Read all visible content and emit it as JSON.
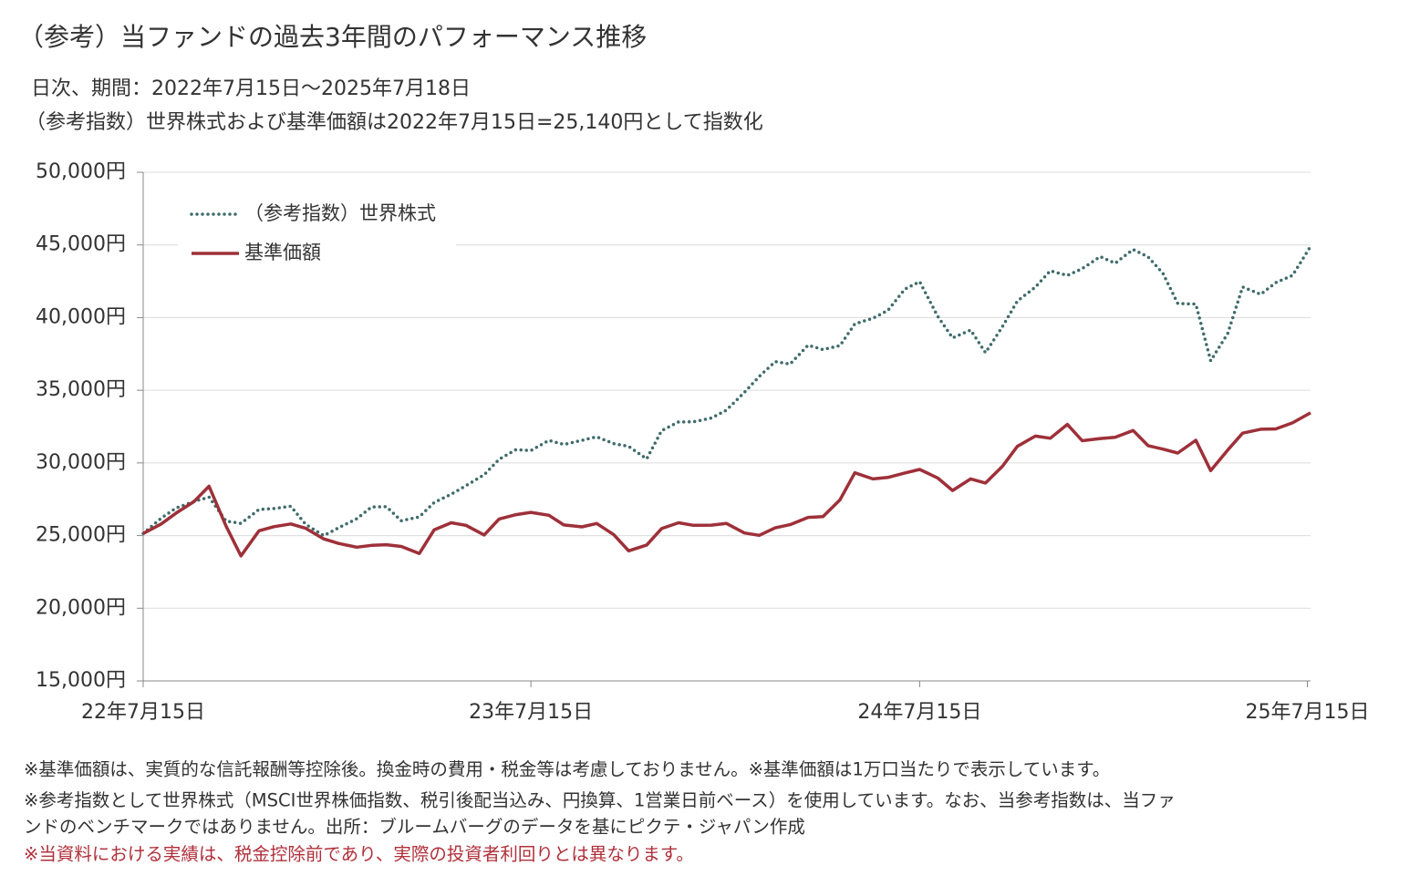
{
  "chart_data": {
    "type": "line",
    "title": "（参考）当ファンドの過去3年間のパフォーマンス推移",
    "subtitles": [
      "日次、期間：2022年7月15日～2025年7月18日",
      "（参考指数）世界株式および基準価額は2022年7月15日=25,140円として指数化"
    ],
    "x": [
      "2022-07-15",
      "2022-08-01",
      "2022-08-15",
      "2022-09-01",
      "2022-09-15",
      "2022-10-01",
      "2022-10-15",
      "2022-11-01",
      "2022-11-15",
      "2022-12-01",
      "2022-12-15",
      "2023-01-01",
      "2023-01-15",
      "2023-02-01",
      "2023-02-15",
      "2023-03-01",
      "2023-03-15",
      "2023-04-01",
      "2023-04-15",
      "2023-05-01",
      "2023-05-15",
      "2023-06-01",
      "2023-06-15",
      "2023-07-01",
      "2023-07-15",
      "2023-08-01",
      "2023-08-15",
      "2023-09-01",
      "2023-09-15",
      "2023-10-01",
      "2023-10-15",
      "2023-11-01",
      "2023-11-15",
      "2023-12-01",
      "2023-12-15",
      "2024-01-01",
      "2024-01-15",
      "2024-02-01",
      "2024-02-15",
      "2024-03-01",
      "2024-03-15",
      "2024-04-01",
      "2024-04-15",
      "2024-05-01",
      "2024-05-15",
      "2024-06-01",
      "2024-06-15",
      "2024-07-01",
      "2024-07-15",
      "2024-08-01",
      "2024-08-15",
      "2024-09-01",
      "2024-09-15",
      "2024-10-01",
      "2024-10-15",
      "2024-11-01",
      "2024-11-15",
      "2024-12-01",
      "2024-12-15",
      "2025-01-01",
      "2025-01-15",
      "2025-02-01",
      "2025-02-15",
      "2025-03-01",
      "2025-03-15",
      "2025-04-01",
      "2025-04-15",
      "2025-05-01",
      "2025-05-15",
      "2025-06-01",
      "2025-06-15",
      "2025-07-01",
      "2025-07-18"
    ],
    "series": [
      {
        "name": "（参考指数）世界株式",
        "color": "#3f6b6b",
        "dash": "dotted",
        "values": [
          25140,
          26200,
          26900,
          27350,
          27650,
          26000,
          25840,
          26800,
          26860,
          27020,
          25770,
          25000,
          25540,
          26160,
          26970,
          26990,
          26020,
          26290,
          27280,
          27850,
          28440,
          29190,
          30250,
          30920,
          30850,
          31550,
          31270,
          31550,
          31800,
          31330,
          31140,
          30280,
          32220,
          32820,
          32830,
          33090,
          33630,
          34850,
          35950,
          36970,
          36800,
          38100,
          37800,
          38070,
          39570,
          39960,
          40490,
          41960,
          42470,
          40090,
          38600,
          39140,
          37590,
          39380,
          41140,
          42100,
          43220,
          42900,
          43370,
          44200,
          43740,
          44690,
          44180,
          43050,
          40970,
          40930,
          37030,
          38910,
          42100,
          41600,
          42400,
          42900,
          44900
        ]
      },
      {
        "name": "基準価額",
        "color": "#9e3039",
        "dash": "solid",
        "values": [
          25140,
          25800,
          26550,
          27350,
          28400,
          25660,
          23600,
          25330,
          25610,
          25800,
          25500,
          24770,
          24460,
          24200,
          24330,
          24370,
          24250,
          23770,
          25400,
          25880,
          25700,
          25040,
          26140,
          26440,
          26600,
          26400,
          25730,
          25600,
          25830,
          25060,
          23950,
          24350,
          25480,
          25880,
          25710,
          25720,
          25840,
          25180,
          25020,
          25530,
          25750,
          26250,
          26300,
          27460,
          29320,
          28900,
          29000,
          29310,
          29550,
          28960,
          28100,
          28900,
          28620,
          29770,
          31140,
          31850,
          31700,
          32650,
          31530,
          31680,
          31760,
          32230,
          31190,
          30950,
          30680,
          31560,
          29470,
          30890,
          32050,
          32320,
          32340,
          32760,
          33450
        ]
      }
    ],
    "xlim": [
      "2022-07-15",
      "2025-07-18"
    ],
    "xticks": [
      {
        "value": "2022-07-15",
        "label": "22年7月15日"
      },
      {
        "value": "2023-07-15",
        "label": "23年7月15日"
      },
      {
        "value": "2024-07-15",
        "label": "24年7月15日"
      },
      {
        "value": "2025-07-15",
        "label": "25年7月15日"
      }
    ],
    "ylim": [
      15000,
      50000
    ],
    "yticks": [
      {
        "value": 15000,
        "label": "15,000円"
      },
      {
        "value": 20000,
        "label": "20,000円"
      },
      {
        "value": 25000,
        "label": "25,000円"
      },
      {
        "value": 30000,
        "label": "30,000円"
      },
      {
        "value": 35000,
        "label": "35,000円"
      },
      {
        "value": 40000,
        "label": "40,000円"
      },
      {
        "value": 45000,
        "label": "45,000円"
      },
      {
        "value": 50000,
        "label": "50,000円"
      }
    ],
    "grid": true,
    "legend": "upper left",
    "notes": [
      "※基準価額は、実質的な信託報酬等控除後。換金時の費用・税金等は考慮しておりません。※基準価額は1万口当たりで表示しています。",
      "※参考指数として世界株式（MSCI世界株価指数、税引後配当込み、円換算、1営業日前ベース）を使用しています。なお、当参考指数は、当ファ",
      "ンドのベンチマークではありません。出所：ブルームバーグのデータを基にピクテ・ジャパン作成",
      "※当資料における実績は、税金控除前であり、実際の投資者利回りとは異なります。"
    ],
    "note_colors": [
      "#333333",
      "#333333",
      "#333333",
      "#b0303a"
    ]
  }
}
